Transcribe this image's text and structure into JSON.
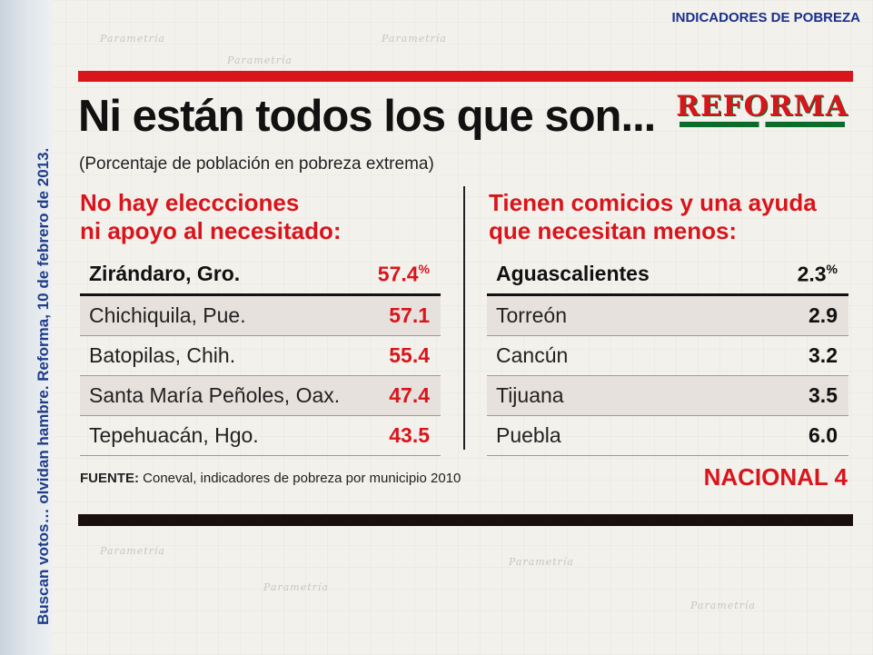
{
  "side_caption": "Buscan votos… olvidan hambre. Reforma, 10 de febrero de 2013.",
  "header_title": "INDICADORES DE POBREZA",
  "background_word": "Parametría",
  "headline": "Ni están todos los que son...",
  "logo_text": "REFORMA",
  "subtitle": "(Porcentaje de población en pobreza extrema)",
  "left": {
    "title_line1": "No hay eleccciones",
    "title_line2": "ni apoyo al necesitado:",
    "rows": [
      {
        "name": "Zirándaro, Gro.",
        "value": "57.4",
        "unit": "%"
      },
      {
        "name": "Chichiquila, Pue.",
        "value": "57.1",
        "unit": ""
      },
      {
        "name": "Batopilas, Chih.",
        "value": "55.4",
        "unit": ""
      },
      {
        "name": "Santa María Peñoles, Oax.",
        "value": "47.4",
        "unit": ""
      },
      {
        "name": "Tepehuacán, Hgo.",
        "value": "43.5",
        "unit": ""
      }
    ]
  },
  "right": {
    "title_line1": "Tienen comicios y una ayuda",
    "title_line2": "que necesitan menos:",
    "rows": [
      {
        "name": "Aguascalientes",
        "value": "2.3",
        "unit": "%"
      },
      {
        "name": "Torreón",
        "value": "2.9",
        "unit": ""
      },
      {
        "name": "Cancún",
        "value": "3.2",
        "unit": ""
      },
      {
        "name": "Tijuana",
        "value": "3.5",
        "unit": ""
      },
      {
        "name": "Puebla",
        "value": "6.0",
        "unit": ""
      }
    ]
  },
  "source_label": "FUENTE:",
  "source_text": " Coneval, indicadores de pobreza por municipio 2010",
  "section_tag": "NACIONAL 4",
  "colors": {
    "accent_red": "#d9151c",
    "caption_blue": "#1f3e8a",
    "header_blue": "#1a2f8c"
  }
}
